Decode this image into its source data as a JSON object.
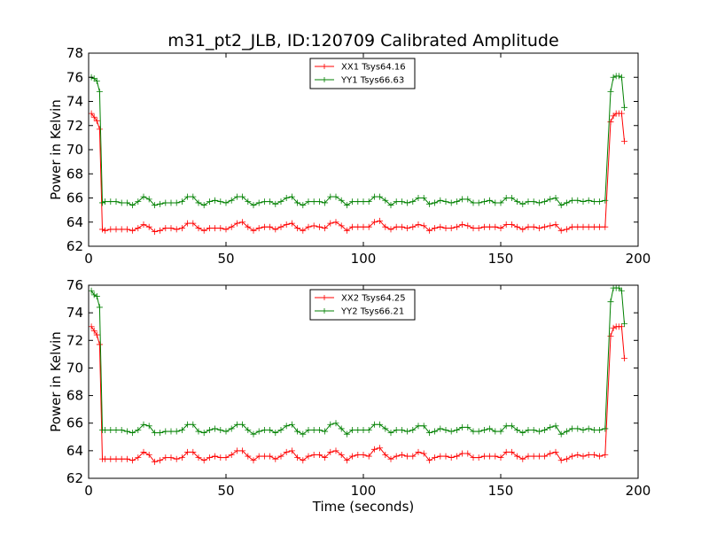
{
  "chart_data": [
    {
      "type": "line",
      "title": "m31_pt2_JLB, ID:120709 Calibrated Amplitude",
      "xlabel": "",
      "ylabel": "Power in Kelvin",
      "xlim": [
        0,
        200
      ],
      "ylim": [
        62,
        78
      ],
      "xticks": [
        "0",
        "50",
        "100",
        "150",
        "200"
      ],
      "yticks": [
        "62",
        "64",
        "66",
        "68",
        "70",
        "72",
        "74",
        "76",
        "78"
      ],
      "grid": false,
      "legend_position": "top-center",
      "series": [
        {
          "name": "XX1 Tsys64.16",
          "color": "#ff0000",
          "x": [
            1,
            2,
            3,
            4,
            5,
            6,
            8,
            10,
            12,
            14,
            16,
            18,
            20,
            22,
            24,
            26,
            28,
            30,
            32,
            34,
            36,
            38,
            40,
            42,
            44,
            46,
            48,
            50,
            52,
            54,
            56,
            58,
            60,
            62,
            64,
            66,
            68,
            70,
            72,
            74,
            76,
            78,
            80,
            82,
            84,
            86,
            88,
            90,
            92,
            94,
            96,
            98,
            100,
            102,
            104,
            106,
            108,
            110,
            112,
            114,
            116,
            118,
            120,
            122,
            124,
            126,
            128,
            130,
            132,
            134,
            136,
            138,
            140,
            142,
            144,
            146,
            148,
            150,
            152,
            154,
            156,
            158,
            160,
            162,
            164,
            166,
            168,
            170,
            172,
            174,
            176,
            178,
            180,
            182,
            184,
            186,
            188,
            190,
            191,
            192,
            193,
            194,
            195
          ],
          "y": [
            73.0,
            72.7,
            72.4,
            71.7,
            63.4,
            63.3,
            63.4,
            63.4,
            63.4,
            63.4,
            63.3,
            63.5,
            63.8,
            63.6,
            63.2,
            63.3,
            63.5,
            63.5,
            63.4,
            63.5,
            63.9,
            63.9,
            63.5,
            63.3,
            63.5,
            63.5,
            63.5,
            63.4,
            63.6,
            63.9,
            64.0,
            63.6,
            63.3,
            63.5,
            63.6,
            63.6,
            63.4,
            63.6,
            63.8,
            63.9,
            63.5,
            63.3,
            63.6,
            63.7,
            63.6,
            63.5,
            63.9,
            64.0,
            63.7,
            63.3,
            63.6,
            63.6,
            63.6,
            63.6,
            64.0,
            64.1,
            63.6,
            63.4,
            63.6,
            63.6,
            63.5,
            63.6,
            63.8,
            63.7,
            63.3,
            63.5,
            63.6,
            63.5,
            63.5,
            63.6,
            63.8,
            63.7,
            63.5,
            63.5,
            63.6,
            63.6,
            63.6,
            63.5,
            63.8,
            63.8,
            63.6,
            63.4,
            63.6,
            63.6,
            63.5,
            63.6,
            63.7,
            63.8,
            63.3,
            63.4,
            63.6,
            63.6,
            63.6,
            63.6,
            63.6,
            63.6,
            63.6,
            72.3,
            72.8,
            73.0,
            73.0,
            73.0,
            70.7
          ]
        },
        {
          "name": "YY1 Tsys66.63",
          "color": "#008000",
          "x": [
            1,
            2,
            3,
            4,
            5,
            6,
            8,
            10,
            12,
            14,
            16,
            18,
            20,
            22,
            24,
            26,
            28,
            30,
            32,
            34,
            36,
            38,
            40,
            42,
            44,
            46,
            48,
            50,
            52,
            54,
            56,
            58,
            60,
            62,
            64,
            66,
            68,
            70,
            72,
            74,
            76,
            78,
            80,
            82,
            84,
            86,
            88,
            90,
            92,
            94,
            96,
            98,
            100,
            102,
            104,
            106,
            108,
            110,
            112,
            114,
            116,
            118,
            120,
            122,
            124,
            126,
            128,
            130,
            132,
            134,
            136,
            138,
            140,
            142,
            144,
            146,
            148,
            150,
            152,
            154,
            156,
            158,
            160,
            162,
            164,
            166,
            168,
            170,
            172,
            174,
            176,
            178,
            180,
            182,
            184,
            186,
            188,
            190,
            191,
            192,
            193,
            194,
            195
          ],
          "y": [
            76.0,
            75.9,
            75.7,
            74.8,
            65.6,
            65.7,
            65.7,
            65.7,
            65.6,
            65.6,
            65.4,
            65.7,
            66.1,
            65.9,
            65.4,
            65.5,
            65.6,
            65.6,
            65.6,
            65.7,
            66.1,
            66.1,
            65.6,
            65.4,
            65.7,
            65.8,
            65.7,
            65.6,
            65.8,
            66.1,
            66.1,
            65.7,
            65.4,
            65.6,
            65.7,
            65.7,
            65.5,
            65.7,
            66.0,
            66.1,
            65.6,
            65.4,
            65.7,
            65.7,
            65.7,
            65.6,
            66.1,
            66.1,
            65.8,
            65.4,
            65.7,
            65.7,
            65.7,
            65.7,
            66.1,
            66.1,
            65.8,
            65.4,
            65.7,
            65.7,
            65.6,
            65.7,
            66.0,
            66.0,
            65.5,
            65.6,
            65.8,
            65.7,
            65.6,
            65.7,
            65.9,
            65.9,
            65.6,
            65.6,
            65.7,
            65.8,
            65.6,
            65.6,
            66.0,
            66.0,
            65.7,
            65.5,
            65.7,
            65.7,
            65.6,
            65.7,
            65.9,
            66.0,
            65.4,
            65.6,
            65.8,
            65.8,
            65.7,
            65.8,
            65.7,
            65.7,
            65.8,
            74.8,
            76.0,
            76.1,
            76.1,
            76.0,
            73.5
          ]
        }
      ]
    },
    {
      "type": "line",
      "title": "",
      "xlabel": "Time (seconds)",
      "ylabel": "Power in Kelvin",
      "xlim": [
        0,
        200
      ],
      "ylim": [
        62,
        76
      ],
      "xticks": [
        "0",
        "50",
        "100",
        "150",
        "200"
      ],
      "yticks": [
        "62",
        "64",
        "66",
        "68",
        "70",
        "72",
        "74",
        "76"
      ],
      "grid": false,
      "legend_position": "top-center",
      "series": [
        {
          "name": "XX2 Tsys64.25",
          "color": "#ff0000",
          "x": [
            1,
            2,
            3,
            4,
            5,
            6,
            8,
            10,
            12,
            14,
            16,
            18,
            20,
            22,
            24,
            26,
            28,
            30,
            32,
            34,
            36,
            38,
            40,
            42,
            44,
            46,
            48,
            50,
            52,
            54,
            56,
            58,
            60,
            62,
            64,
            66,
            68,
            70,
            72,
            74,
            76,
            78,
            80,
            82,
            84,
            86,
            88,
            90,
            92,
            94,
            96,
            98,
            100,
            102,
            104,
            106,
            108,
            110,
            112,
            114,
            116,
            118,
            120,
            122,
            124,
            126,
            128,
            130,
            132,
            134,
            136,
            138,
            140,
            142,
            144,
            146,
            148,
            150,
            152,
            154,
            156,
            158,
            160,
            162,
            164,
            166,
            168,
            170,
            172,
            174,
            176,
            178,
            180,
            182,
            184,
            186,
            188,
            190,
            191,
            192,
            193,
            194,
            195
          ],
          "y": [
            73.0,
            72.7,
            72.4,
            71.7,
            63.4,
            63.4,
            63.4,
            63.4,
            63.4,
            63.4,
            63.3,
            63.5,
            63.9,
            63.7,
            63.2,
            63.3,
            63.5,
            63.5,
            63.4,
            63.5,
            63.9,
            63.9,
            63.5,
            63.3,
            63.5,
            63.6,
            63.5,
            63.5,
            63.7,
            64.0,
            64.0,
            63.6,
            63.3,
            63.6,
            63.6,
            63.6,
            63.4,
            63.6,
            63.9,
            64.0,
            63.5,
            63.3,
            63.6,
            63.7,
            63.7,
            63.5,
            63.9,
            64.0,
            63.7,
            63.3,
            63.6,
            63.7,
            63.7,
            63.6,
            64.1,
            64.2,
            63.7,
            63.4,
            63.6,
            63.7,
            63.6,
            63.6,
            63.9,
            63.8,
            63.3,
            63.5,
            63.6,
            63.6,
            63.5,
            63.6,
            63.8,
            63.8,
            63.5,
            63.5,
            63.6,
            63.6,
            63.6,
            63.5,
            63.9,
            63.9,
            63.6,
            63.4,
            63.6,
            63.6,
            63.6,
            63.6,
            63.8,
            63.9,
            63.3,
            63.4,
            63.6,
            63.7,
            63.6,
            63.7,
            63.7,
            63.6,
            63.7,
            72.3,
            72.9,
            73.0,
            73.0,
            73.0,
            70.7
          ]
        },
        {
          "name": "YY2 Tsys66.21",
          "color": "#008000",
          "x": [
            1,
            2,
            3,
            4,
            5,
            6,
            8,
            10,
            12,
            14,
            16,
            18,
            20,
            22,
            24,
            26,
            28,
            30,
            32,
            34,
            36,
            38,
            40,
            42,
            44,
            46,
            48,
            50,
            52,
            54,
            56,
            58,
            60,
            62,
            64,
            66,
            68,
            70,
            72,
            74,
            76,
            78,
            80,
            82,
            84,
            86,
            88,
            90,
            92,
            94,
            96,
            98,
            100,
            102,
            104,
            106,
            108,
            110,
            112,
            114,
            116,
            118,
            120,
            122,
            124,
            126,
            128,
            130,
            132,
            134,
            136,
            138,
            140,
            142,
            144,
            146,
            148,
            150,
            152,
            154,
            156,
            158,
            160,
            162,
            164,
            166,
            168,
            170,
            172,
            174,
            176,
            178,
            180,
            182,
            184,
            186,
            188,
            190,
            191,
            192,
            193,
            194,
            195
          ],
          "y": [
            75.6,
            75.3,
            75.2,
            74.4,
            65.5,
            65.5,
            65.5,
            65.5,
            65.5,
            65.4,
            65.3,
            65.5,
            65.9,
            65.8,
            65.3,
            65.3,
            65.4,
            65.4,
            65.4,
            65.5,
            65.9,
            65.9,
            65.4,
            65.3,
            65.5,
            65.6,
            65.5,
            65.4,
            65.6,
            65.9,
            65.9,
            65.5,
            65.2,
            65.4,
            65.5,
            65.5,
            65.3,
            65.5,
            65.8,
            65.9,
            65.4,
            65.2,
            65.5,
            65.5,
            65.5,
            65.4,
            65.9,
            66.0,
            65.6,
            65.2,
            65.5,
            65.5,
            65.5,
            65.5,
            65.9,
            65.9,
            65.6,
            65.3,
            65.5,
            65.5,
            65.4,
            65.5,
            65.8,
            65.8,
            65.3,
            65.4,
            65.6,
            65.5,
            65.4,
            65.5,
            65.7,
            65.7,
            65.4,
            65.4,
            65.5,
            65.6,
            65.4,
            65.4,
            65.8,
            65.8,
            65.5,
            65.3,
            65.5,
            65.5,
            65.4,
            65.5,
            65.7,
            65.8,
            65.2,
            65.4,
            65.6,
            65.6,
            65.5,
            65.6,
            65.5,
            65.5,
            65.6,
            74.8,
            75.8,
            75.8,
            75.8,
            75.6,
            73.2
          ]
        }
      ]
    }
  ]
}
